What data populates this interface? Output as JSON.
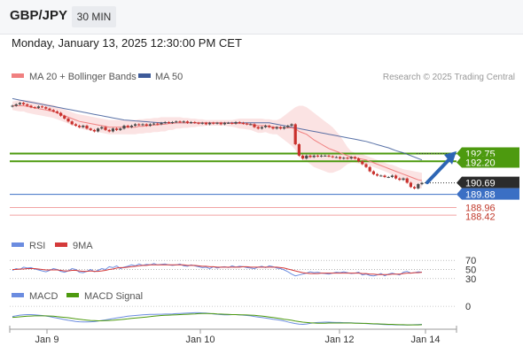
{
  "header": {
    "symbol": "GBP/JPY",
    "timeframe": "30 MIN"
  },
  "datetime": "Monday, January 13, 2025 12:30:00 PM CET",
  "legend": {
    "ma20": "MA 20 + Bollinger Bands",
    "ma50": "MA 50",
    "copyright": "Research © 2025 Trading Central",
    "rsi": "RSI",
    "rsi_ma": "9MA",
    "macd": "MACD",
    "macd_signal": "MACD Signal"
  },
  "colors": {
    "ma20": "#f08080",
    "ma50": "#3d5a99",
    "band_fill": "#fbe3e3",
    "resistance": "#4d9a0f",
    "support": "#f2a3a3",
    "pivot": "#3b6fc4",
    "last_price_bg": "#2b2b2b",
    "arrow": "#2d65b4",
    "rsi": "#6b8ce0",
    "rsi_ma": "#d43a3a",
    "macd": "#6b8ce0",
    "macd_signal": "#4d9a0f",
    "up_candle": "#4a4a4a",
    "down_candle": "#c9302c"
  },
  "chart_data": [
    {
      "type": "candlestick",
      "title": "GBP/JPY 30 MIN",
      "x_ticks": [
        "Jan 9",
        "Jan 10",
        "Jan 12",
        "Jan 14"
      ],
      "ylim": [
        188.0,
        193.9
      ],
      "levels": [
        {
          "label": "192.75",
          "value": 192.75,
          "kind": "resistance"
        },
        {
          "label": "192.20",
          "value": 192.2,
          "kind": "resistance"
        },
        {
          "label": "190.69",
          "value": 190.69,
          "kind": "last"
        },
        {
          "label": "189.88",
          "value": 189.88,
          "kind": "pivot"
        },
        {
          "label": "188.96",
          "value": 188.96,
          "kind": "support"
        },
        {
          "label": "188.42",
          "value": 188.42,
          "kind": "support"
        }
      ],
      "close": [
        196.1,
        196.2,
        196.3,
        196.2,
        196.1,
        196.0,
        195.95,
        196.05,
        196.0,
        195.9,
        195.8,
        195.7,
        195.6,
        195.4,
        195.2,
        195.0,
        194.8,
        194.7,
        194.6,
        194.7,
        194.5,
        194.4,
        194.3,
        194.5,
        194.6,
        194.4,
        194.3,
        194.5,
        194.4,
        194.5,
        194.7,
        194.6,
        194.7,
        194.8,
        194.75,
        194.8,
        194.7,
        194.8,
        194.85,
        194.8,
        194.9,
        194.95,
        194.9,
        194.95,
        195.0,
        194.95,
        195.0,
        194.9,
        194.95,
        194.9,
        194.85,
        194.9,
        194.8,
        194.9,
        194.85,
        194.9,
        194.8,
        194.9,
        194.9,
        194.85,
        194.95,
        194.9,
        194.85,
        194.8,
        194.8,
        194.6,
        194.5,
        194.6,
        194.7,
        194.6,
        194.5,
        194.6,
        194.5,
        194.6,
        194.7,
        194.8,
        193.4,
        192.6,
        192.4,
        192.6,
        192.5,
        192.6,
        192.55,
        192.6,
        192.6,
        192.55,
        192.5,
        192.5,
        192.4,
        192.45,
        192.4,
        192.5,
        192.4,
        192.2,
        192.0,
        191.8,
        191.5,
        191.3,
        191.2,
        191.2,
        191.1,
        191.1,
        191.2,
        191.0,
        190.9,
        191.0,
        190.7,
        190.4,
        190.3,
        190.6,
        190.69
      ],
      "ma20": [
        196.1,
        196.1,
        196.1,
        196.1,
        196.05,
        196.0,
        195.95,
        195.9,
        195.85,
        195.8,
        195.75,
        195.7,
        195.6,
        195.5,
        195.4,
        195.3,
        195.2,
        195.1,
        195.0,
        194.95,
        194.9,
        194.85,
        194.8,
        194.75,
        194.7,
        194.65,
        194.6,
        194.6,
        194.6,
        194.6,
        194.6,
        194.6,
        194.6,
        194.6,
        194.65,
        194.65,
        194.7,
        194.7,
        194.75,
        194.75,
        194.8,
        194.8,
        194.85,
        194.85,
        194.9,
        194.9,
        194.9,
        194.9,
        194.9,
        194.9,
        194.9,
        194.9,
        194.9,
        194.9,
        194.9,
        194.9,
        194.9,
        194.9,
        194.88,
        194.86,
        194.86,
        194.85,
        194.84,
        194.82,
        194.8,
        194.75,
        194.7,
        194.7,
        194.7,
        194.65,
        194.6,
        194.6,
        194.55,
        194.55,
        194.55,
        194.55,
        194.5,
        194.3,
        194.2,
        194.1,
        193.9,
        193.7,
        193.55,
        193.4,
        193.25,
        193.1,
        193.0,
        192.9,
        192.8,
        192.7,
        192.6,
        192.5,
        192.45,
        192.4,
        192.35,
        192.3,
        192.2,
        192.1,
        192.0,
        191.9,
        191.8,
        191.7,
        191.6,
        191.5,
        191.4,
        191.3,
        191.2,
        191.1,
        191.0,
        190.9,
        190.85
      ],
      "bb_upper": [
        196.4,
        196.45,
        196.5,
        196.5,
        196.5,
        196.45,
        196.4,
        196.35,
        196.3,
        196.25,
        196.2,
        196.15,
        196.05,
        195.95,
        195.85,
        195.75,
        195.65,
        195.55,
        195.5,
        195.45,
        195.4,
        195.35,
        195.3,
        195.25,
        195.2,
        195.15,
        195.1,
        195.1,
        195.1,
        195.1,
        195.1,
        195.1,
        195.1,
        195.1,
        195.15,
        195.15,
        195.2,
        195.2,
        195.25,
        195.25,
        195.3,
        195.3,
        195.3,
        195.3,
        195.3,
        195.3,
        195.25,
        195.25,
        195.2,
        195.2,
        195.15,
        195.15,
        195.1,
        195.1,
        195.1,
        195.1,
        195.1,
        195.1,
        195.1,
        195.1,
        195.15,
        195.2,
        195.2,
        195.2,
        195.2,
        195.2,
        195.2,
        195.2,
        195.15,
        195.15,
        195.1,
        195.1,
        195.2,
        195.4,
        195.6,
        195.8,
        196.0,
        196.1,
        196.1,
        196.0,
        195.8,
        195.6,
        195.4,
        195.2,
        195.0,
        194.8,
        194.6,
        194.3,
        194.0,
        193.6,
        193.2,
        192.9,
        192.8,
        192.75,
        192.7,
        192.6,
        192.5,
        192.4,
        192.3,
        192.2,
        192.1,
        192.0,
        191.95,
        191.85,
        191.75,
        191.65,
        191.6,
        191.55,
        191.5,
        191.45,
        191.4
      ],
      "bb_lower": [
        195.8,
        195.75,
        195.7,
        195.7,
        195.6,
        195.55,
        195.5,
        195.45,
        195.4,
        195.35,
        195.3,
        195.25,
        195.15,
        195.05,
        194.95,
        194.85,
        194.75,
        194.65,
        194.5,
        194.45,
        194.4,
        194.35,
        194.3,
        194.25,
        194.2,
        194.15,
        194.1,
        194.1,
        194.1,
        194.1,
        194.1,
        194.1,
        194.1,
        194.1,
        194.15,
        194.15,
        194.2,
        194.2,
        194.25,
        194.25,
        194.3,
        194.3,
        194.4,
        194.4,
        194.5,
        194.5,
        194.55,
        194.55,
        194.6,
        194.6,
        194.65,
        194.65,
        194.7,
        194.7,
        194.7,
        194.7,
        194.7,
        194.7,
        194.66,
        194.62,
        194.57,
        194.5,
        194.48,
        194.44,
        194.4,
        194.3,
        194.2,
        194.2,
        194.25,
        194.15,
        194.1,
        194.1,
        193.9,
        193.7,
        193.5,
        193.3,
        193.0,
        192.5,
        192.3,
        192.2,
        192.0,
        191.8,
        191.7,
        191.6,
        191.5,
        191.4,
        191.4,
        191.5,
        191.6,
        191.8,
        192.0,
        192.1,
        192.1,
        192.05,
        192.0,
        192.0,
        191.9,
        191.8,
        191.7,
        191.6,
        191.5,
        191.4,
        191.25,
        191.15,
        191.05,
        190.95,
        190.8,
        190.65,
        190.5,
        190.35,
        190.3
      ],
      "ma50": [
        196.6,
        196.55,
        196.5,
        196.45,
        196.4,
        196.35,
        196.3,
        196.25,
        196.2,
        196.15,
        196.1,
        196.05,
        196.0,
        195.95,
        195.9,
        195.85,
        195.8,
        195.75,
        195.7,
        195.65,
        195.6,
        195.55,
        195.5,
        195.45,
        195.4,
        195.35,
        195.3,
        195.25,
        195.2,
        195.15,
        195.1,
        195.08,
        195.06,
        195.04,
        195.02,
        195.0,
        194.98,
        194.96,
        194.94,
        194.92,
        194.9,
        194.9,
        194.9,
        194.9,
        194.9,
        194.9,
        194.9,
        194.9,
        194.9,
        194.9,
        194.9,
        194.9,
        194.9,
        194.9,
        194.9,
        194.9,
        194.9,
        194.9,
        194.9,
        194.9,
        194.9,
        194.9,
        194.9,
        194.9,
        194.9,
        194.9,
        194.9,
        194.9,
        194.9,
        194.9,
        194.85,
        194.8,
        194.75,
        194.7,
        194.65,
        194.6,
        194.55,
        194.5,
        194.45,
        194.4,
        194.35,
        194.3,
        194.25,
        194.2,
        194.15,
        194.1,
        194.05,
        194.0,
        193.95,
        193.9,
        193.85,
        193.8,
        193.75,
        193.7,
        193.65,
        193.6,
        193.52,
        193.45,
        193.37,
        193.3,
        193.22,
        193.15,
        193.05,
        192.95,
        192.87,
        192.8,
        192.7,
        192.6,
        192.5,
        192.4,
        192.3
      ]
    },
    {
      "type": "line",
      "title": "RSI",
      "y_ticks": [
        "70",
        "50",
        "30"
      ],
      "ylim": [
        20,
        80
      ],
      "series": [
        {
          "name": "RSI",
          "values": [
            48,
            52,
            50,
            55,
            53,
            54,
            51,
            49,
            47,
            45,
            48,
            52,
            50,
            46,
            44,
            47,
            52,
            50,
            44,
            43,
            46,
            50,
            45,
            48,
            52,
            50,
            56,
            54,
            58,
            52,
            55,
            57,
            60,
            58,
            62,
            59,
            61,
            60,
            63,
            60,
            61,
            62,
            60,
            59,
            60,
            62,
            58,
            57,
            60,
            58,
            56,
            54,
            55,
            52,
            56,
            53,
            55,
            56,
            54,
            58,
            55,
            57,
            56,
            54,
            53,
            52,
            55,
            57,
            54,
            58,
            56,
            53,
            52,
            49,
            45,
            40,
            36,
            38,
            40,
            42,
            45,
            43,
            44,
            42,
            41,
            40,
            42,
            44,
            43,
            45,
            43,
            41,
            42,
            44,
            38,
            40,
            37,
            36,
            38,
            41,
            36,
            40,
            42,
            40,
            38,
            44,
            46,
            42,
            43,
            45,
            44
          ]
        },
        {
          "name": "9MA",
          "values": [
            50,
            50,
            51,
            51,
            52,
            52,
            52,
            51,
            50,
            49,
            49,
            49,
            49,
            48,
            47,
            47,
            48,
            48,
            47,
            46,
            46,
            47,
            46,
            46,
            47,
            48,
            50,
            51,
            53,
            54,
            54,
            55,
            56,
            57,
            58,
            59,
            59,
            60,
            60,
            60,
            60,
            60,
            60,
            60,
            60,
            60,
            60,
            59,
            59,
            59,
            58,
            57,
            57,
            56,
            56,
            55,
            55,
            55,
            55,
            55,
            55,
            55,
            56,
            56,
            55,
            55,
            55,
            55,
            55,
            55,
            55,
            55,
            54,
            53,
            51,
            49,
            47,
            45,
            43,
            42,
            41,
            41,
            41,
            42,
            42,
            42,
            42,
            42,
            42,
            42,
            42,
            42,
            42,
            42,
            41,
            41,
            40,
            40,
            39,
            39,
            39,
            39,
            40,
            40,
            40,
            41,
            42,
            42,
            43,
            43,
            44
          ]
        }
      ]
    },
    {
      "type": "line",
      "title": "MACD",
      "y_ticks": [
        "0"
      ],
      "ylim": [
        -1.15,
        0.2
      ],
      "series": [
        {
          "name": "MACD",
          "values": [
            -0.55,
            -0.52,
            -0.48,
            -0.46,
            -0.45,
            -0.45,
            -0.46,
            -0.48,
            -0.5,
            -0.53,
            -0.56,
            -0.6,
            -0.64,
            -0.68,
            -0.72,
            -0.76,
            -0.79,
            -0.82,
            -0.84,
            -0.85,
            -0.85,
            -0.84,
            -0.83,
            -0.8,
            -0.77,
            -0.74,
            -0.7,
            -0.67,
            -0.63,
            -0.6,
            -0.57,
            -0.54,
            -0.52,
            -0.5,
            -0.48,
            -0.46,
            -0.45,
            -0.44,
            -0.44,
            -0.43,
            -0.43,
            -0.42,
            -0.42,
            -0.41,
            -0.4,
            -0.39,
            -0.38,
            -0.37,
            -0.36,
            -0.35,
            -0.35,
            -0.36,
            -0.37,
            -0.39,
            -0.41,
            -0.43,
            -0.45,
            -0.46,
            -0.46,
            -0.45,
            -0.45,
            -0.46,
            -0.48,
            -0.5,
            -0.52,
            -0.55,
            -0.58,
            -0.61,
            -0.64,
            -0.67,
            -0.7,
            -0.73,
            -0.76,
            -0.8,
            -0.85,
            -0.9,
            -0.94,
            -0.97,
            -0.98,
            -0.96,
            -0.93,
            -0.9,
            -0.88,
            -0.87,
            -0.86,
            -0.86,
            -0.87,
            -0.88,
            -0.88,
            -0.89,
            -0.89,
            -0.9,
            -0.91,
            -0.92,
            -0.93,
            -0.94,
            -0.95,
            -0.96,
            -0.97,
            -0.98,
            -0.99,
            -1.0,
            -1.0,
            -1.01,
            -1.01,
            -1.02,
            -1.02,
            -1.01,
            -1.0,
            -0.99,
            -0.98
          ]
        },
        {
          "name": "MACD Signal",
          "values": [
            -0.6,
            -0.59,
            -0.57,
            -0.55,
            -0.54,
            -0.53,
            -0.52,
            -0.52,
            -0.52,
            -0.52,
            -0.53,
            -0.54,
            -0.56,
            -0.58,
            -0.6,
            -0.62,
            -0.65,
            -0.68,
            -0.7,
            -0.73,
            -0.75,
            -0.77,
            -0.78,
            -0.79,
            -0.79,
            -0.78,
            -0.77,
            -0.76,
            -0.74,
            -0.72,
            -0.7,
            -0.68,
            -0.66,
            -0.64,
            -0.62,
            -0.6,
            -0.58,
            -0.56,
            -0.54,
            -0.52,
            -0.5,
            -0.49,
            -0.48,
            -0.47,
            -0.46,
            -0.45,
            -0.44,
            -0.43,
            -0.42,
            -0.41,
            -0.4,
            -0.39,
            -0.39,
            -0.4,
            -0.4,
            -0.41,
            -0.42,
            -0.43,
            -0.44,
            -0.45,
            -0.45,
            -0.46,
            -0.46,
            -0.47,
            -0.48,
            -0.49,
            -0.51,
            -0.53,
            -0.55,
            -0.58,
            -0.61,
            -0.64,
            -0.67,
            -0.7,
            -0.73,
            -0.76,
            -0.8,
            -0.83,
            -0.86,
            -0.88,
            -0.9,
            -0.91,
            -0.92,
            -0.92,
            -0.92,
            -0.91,
            -0.91,
            -0.91,
            -0.91,
            -0.91,
            -0.91,
            -0.91,
            -0.92,
            -0.92,
            -0.93,
            -0.93,
            -0.94,
            -0.95,
            -0.95,
            -0.96,
            -0.97,
            -0.98,
            -0.98,
            -0.99,
            -1.0,
            -1.0,
            -1.01,
            -1.01,
            -1.01,
            -1.01,
            -1.0
          ]
        }
      ]
    }
  ]
}
